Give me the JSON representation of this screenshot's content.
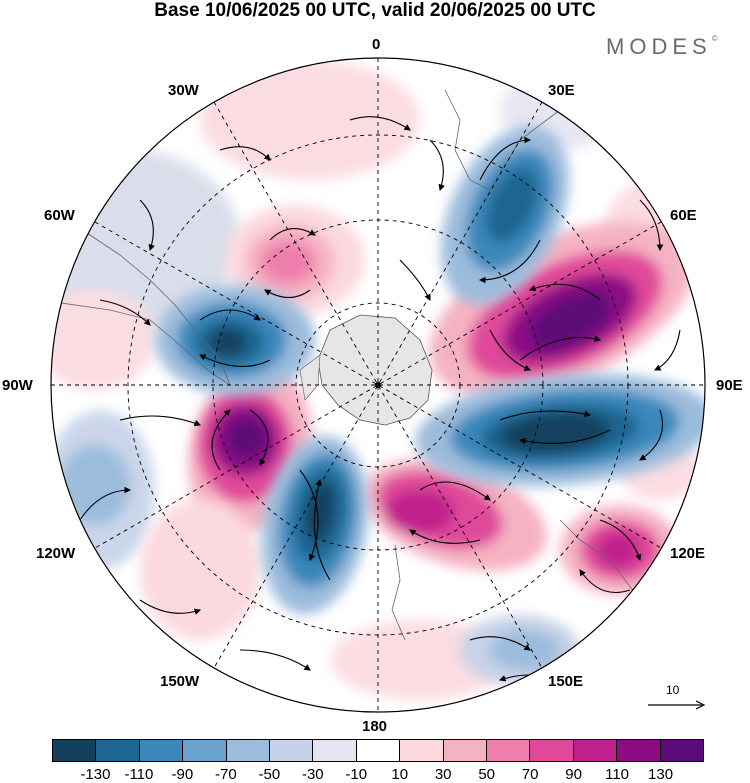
{
  "title": "Base 10/06/2025 00 UTC, valid 20/06/2025 00 UTC",
  "brand": "MODES",
  "brand_mark": "©",
  "longitude_labels": {
    "n0": "0",
    "n30e": "30E",
    "n60e": "60E",
    "n90e": "90E",
    "n120e": "120E",
    "n150e": "150E",
    "n180": "180",
    "n150w": "150W",
    "n120w": "120W",
    "n90w": "90W",
    "n60w": "60W",
    "n30w": "30W"
  },
  "reference_vector_label": "10",
  "colorbar": {
    "ticks": [
      "-130",
      "-110",
      "-90",
      "-70",
      "-50",
      "-30",
      "-10",
      "10",
      "30",
      "50",
      "70",
      "90",
      "110",
      "130"
    ],
    "colors": [
      "#14405e",
      "#1c6691",
      "#3a88bc",
      "#6aa3cf",
      "#9bbcdc",
      "#c6d2e8",
      "#e5e5f2",
      "#ffffff",
      "#fbd9df",
      "#f5b2c3",
      "#ee7fac",
      "#e0489a",
      "#c0208d",
      "#8e0b84",
      "#5b0c78"
    ]
  }
}
